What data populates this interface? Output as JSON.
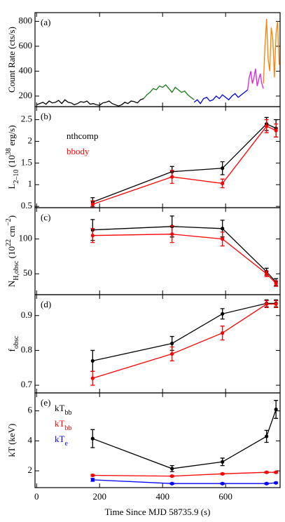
{
  "chart_data": [
    {
      "type": "line",
      "panel_label": "(a)",
      "ylabel": [
        {
          "text": "Count Rate (cts/s)"
        }
      ],
      "xlim": [
        -5,
        773
      ],
      "xticks": [
        0,
        200,
        400,
        600
      ],
      "ylim": [
        115,
        870
      ],
      "yticks": [
        200,
        400,
        600,
        800
      ],
      "series": [
        {
          "color": "#000000",
          "x": [
            0,
            10,
            20,
            30,
            40,
            50,
            60,
            70,
            80,
            90,
            100,
            110,
            120,
            130,
            140,
            150,
            160,
            170,
            180,
            190,
            200,
            210,
            220,
            230,
            240,
            250,
            260,
            270,
            280,
            290,
            300,
            310,
            320,
            330,
            340
          ],
          "values": [
            130,
            140,
            150,
            135,
            160,
            145,
            150,
            165,
            140,
            170,
            150,
            145,
            130,
            140,
            155,
            150,
            160,
            135,
            140,
            130,
            125,
            145,
            150,
            160,
            140,
            130,
            120,
            130,
            150,
            140,
            160,
            155,
            145,
            170,
            180
          ]
        },
        {
          "color": "#1a7a1a",
          "x": [
            340,
            350,
            360,
            370,
            380,
            390,
            400,
            410,
            420,
            430,
            440,
            450,
            460,
            470,
            480,
            490,
            500
          ],
          "values": [
            180,
            210,
            230,
            260,
            250,
            280,
            270,
            290,
            260,
            230,
            270,
            250,
            230,
            240,
            210,
            190,
            170
          ]
        },
        {
          "color": "#0000dd",
          "x": [
            500,
            510,
            520,
            530,
            540,
            550,
            560,
            570,
            580,
            590,
            600,
            610,
            620,
            630,
            640,
            650,
            660,
            670
          ],
          "values": [
            150,
            170,
            140,
            180,
            190,
            160,
            170,
            200,
            180,
            210,
            190,
            170,
            200,
            220,
            190,
            210,
            230,
            250
          ]
        },
        {
          "color": "#e020e0",
          "x": [
            670,
            675,
            680,
            685,
            690,
            695,
            700,
            705,
            710,
            715,
            720
          ],
          "values": [
            250,
            350,
            400,
            300,
            350,
            420,
            280,
            330,
            380,
            300,
            260
          ]
        },
        {
          "color": "#ff8000",
          "x": [
            720,
            725,
            730,
            735,
            740,
            745,
            750,
            755,
            760,
            765,
            770
          ],
          "values": [
            300,
            600,
            820,
            500,
            400,
            750,
            650,
            350,
            700,
            800,
            450
          ]
        }
      ]
    },
    {
      "type": "errorbar",
      "panel_label": "(b)",
      "ylabel": [
        {
          "text": "L"
        },
        {
          "text": "2–10",
          "shift": "sub"
        },
        {
          "text": " (10"
        },
        {
          "text": "38",
          "shift": "super"
        },
        {
          "text": " erg/s)"
        }
      ],
      "xlim": [
        -5,
        773
      ],
      "xticks": [
        0,
        200,
        400,
        600
      ],
      "ylim": [
        0.47,
        2.8
      ],
      "yticks": [
        0.5,
        1,
        1.5,
        2,
        2.5
      ],
      "series": [
        {
          "name": "nthcomp",
          "color": "#000000",
          "x": [
            178,
            430,
            590,
            730,
            760
          ],
          "values": [
            0.6,
            1.3,
            1.38,
            2.4,
            2.3
          ],
          "errors": [
            0.1,
            0.12,
            0.15,
            0.15,
            0.2
          ]
        },
        {
          "name": "bbody",
          "color": "#ff0000",
          "x": [
            178,
            430,
            590,
            730,
            760
          ],
          "values": [
            0.55,
            1.18,
            1.03,
            2.35,
            2.25
          ],
          "errors": [
            0.08,
            0.15,
            0.1,
            0.15,
            0.15
          ]
        }
      ]
    },
    {
      "type": "errorbar",
      "panel_label": "(c)",
      "ylabel": [
        {
          "text": "N"
        },
        {
          "text": "H,obsc",
          "shift": "sub"
        },
        {
          "text": " (10"
        },
        {
          "text": "22",
          "shift": "super"
        },
        {
          "text": " cm"
        },
        {
          "text": "−2",
          "shift": "super"
        },
        {
          "text": ")"
        }
      ],
      "xlim": [
        -5,
        773
      ],
      "xticks": [
        0,
        200,
        400,
        600
      ],
      "ylim": [
        20,
        145
      ],
      "yticks": [
        50,
        100
      ],
      "series": [
        {
          "color": "#000000",
          "x": [
            178,
            430,
            590,
            730,
            760
          ],
          "values": [
            113,
            118,
            115,
            53,
            38
          ],
          "errors": [
            15,
            15,
            12,
            5,
            5
          ]
        },
        {
          "color": "#ff0000",
          "x": [
            178,
            430,
            590,
            730,
            760
          ],
          "values": [
            105,
            107,
            100,
            50,
            36
          ],
          "errors": [
            10,
            12,
            10,
            4,
            4
          ]
        }
      ]
    },
    {
      "type": "errorbar",
      "panel_label": "(d)",
      "ylabel": [
        {
          "text": "f"
        },
        {
          "text": "obsc",
          "shift": "sub"
        }
      ],
      "xlim": [
        -5,
        773
      ],
      "xticks": [
        0,
        200,
        400,
        600
      ],
      "ylim": [
        0.678,
        0.96
      ],
      "yticks": [
        0.7,
        0.8,
        0.9
      ],
      "series": [
        {
          "color": "#000000",
          "x": [
            178,
            430,
            590,
            730,
            760
          ],
          "values": [
            0.77,
            0.82,
            0.905,
            0.935,
            0.935
          ],
          "errors": [
            0.03,
            0.02,
            0.015,
            0.01,
            0.01
          ]
        },
        {
          "color": "#ff0000",
          "x": [
            178,
            430,
            590,
            730,
            760
          ],
          "values": [
            0.72,
            0.79,
            0.85,
            0.933,
            0.933
          ],
          "errors": [
            0.02,
            0.02,
            0.02,
            0.01,
            0.01
          ]
        }
      ]
    },
    {
      "type": "errorbar",
      "panel_label": "(e)",
      "ylabel": [
        {
          "text": "kT (keV)"
        }
      ],
      "xlabel": "Time Since MJD 58735.9 (s)",
      "xlim": [
        -5,
        773
      ],
      "xticks": [
        0,
        200,
        400,
        600
      ],
      "ylim": [
        0.88,
        7.2
      ],
      "yticks": [
        2,
        4,
        6
      ],
      "series": [
        {
          "name": [
            {
              "text": "kT"
            },
            {
              "text": "bb",
              "shift": "sub"
            }
          ],
          "color": "#000000",
          "x": [
            178,
            430,
            590,
            730,
            760
          ],
          "values": [
            4.15,
            2.15,
            2.6,
            4.3,
            6.1
          ],
          "errors": [
            0.6,
            0.2,
            0.25,
            0.4,
            0.6
          ]
        },
        {
          "name": [
            {
              "text": "kT"
            },
            {
              "text": "bb",
              "shift": "sub"
            }
          ],
          "color": "#ff0000",
          "x": [
            178,
            430,
            590,
            730,
            760
          ],
          "values": [
            1.7,
            1.65,
            1.8,
            1.9,
            1.9
          ],
          "errors": [
            0.05,
            0.05,
            0.05,
            0.05,
            0.05
          ]
        },
        {
          "name": [
            {
              "text": "kT"
            },
            {
              "text": "e",
              "shift": "sub"
            }
          ],
          "color": "#0000ff",
          "x": [
            178,
            430,
            590,
            730,
            760
          ],
          "values": [
            1.4,
            1.15,
            1.15,
            1.15,
            1.2
          ],
          "errors": [
            0.1,
            0.05,
            0.05,
            0.05,
            0.05
          ]
        }
      ]
    }
  ]
}
